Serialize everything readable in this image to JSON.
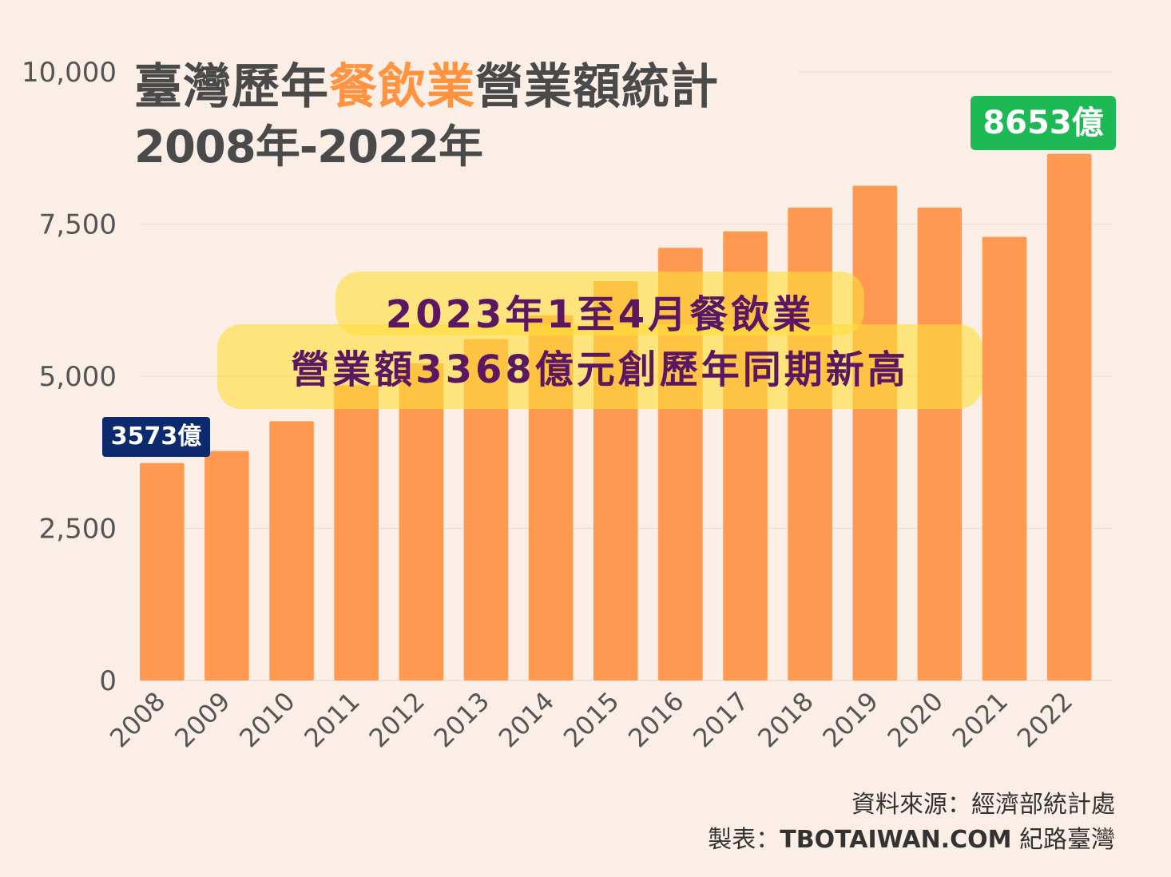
{
  "title": {
    "line1_prefix": "臺灣歷年",
    "line1_accent": "餐飲業",
    "line1_suffix": "營業額統計",
    "line2": "2008年-2022年"
  },
  "callouts": {
    "start": "3573億",
    "end": "8653億"
  },
  "highlight": {
    "line1": "2023年1至4月餐飲業",
    "line2": "營業額3368億元創歷年同期新高"
  },
  "footer": {
    "source": "資料來源：經濟部統計處",
    "credit_prefix": "製表：",
    "credit_site": "TBOTAIWAN.COM",
    "credit_suffix": " 紀路臺灣"
  },
  "colors": {
    "background": "#FBEEE6",
    "bar": "#FF9850",
    "grid": "#E8DCD4",
    "axis_text": "#555555",
    "accent": "#FF9340"
  },
  "chart_data": {
    "type": "bar",
    "title": "臺灣歷年餐飲業營業額統計 2008年-2022年",
    "xlabel": "",
    "ylabel": "",
    "ylim": [
      0,
      10000
    ],
    "yticks": [
      0,
      2500,
      5000,
      7500,
      10000
    ],
    "ytick_labels": [
      "0",
      "2,500",
      "5,000",
      "7,500",
      "10,000"
    ],
    "categories": [
      "2008",
      "2009",
      "2010",
      "2011",
      "2012",
      "2013",
      "2014",
      "2015",
      "2016",
      "2017",
      "2018",
      "2019",
      "2020",
      "2021",
      "2022"
    ],
    "values": [
      3573,
      3770,
      4260,
      4850,
      5210,
      5610,
      6000,
      6560,
      7110,
      7380,
      7770,
      8130,
      7770,
      7290,
      8653
    ],
    "grid": true,
    "legend": "none"
  }
}
